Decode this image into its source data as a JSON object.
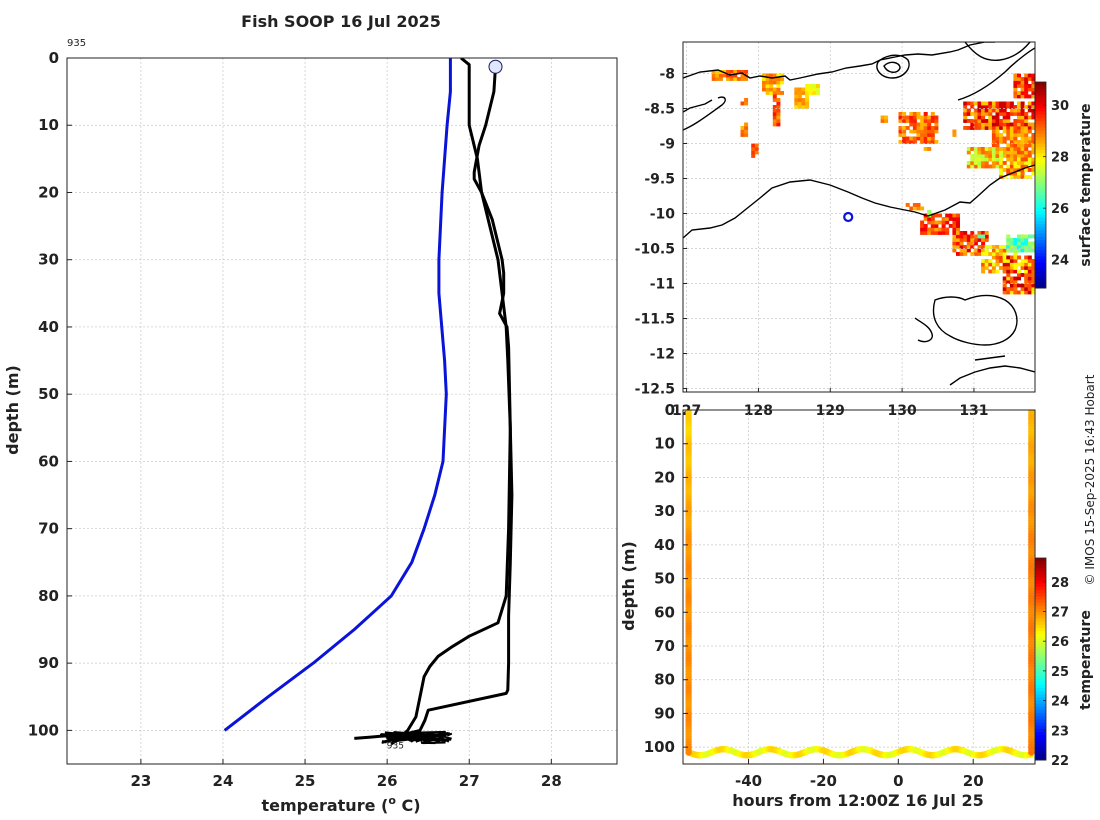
{
  "title": "Fish SOOP 16 Jul 2025",
  "copyright": "© IMOS 15-Sep-2025 16:43 Hobart",
  "colors": {
    "blue": "#0a14d8",
    "black": "#000000",
    "grid": "#c8c8c8"
  },
  "chart_data": [
    {
      "name": "profile",
      "type": "line",
      "xlabel": "temperature (",
      "xlabel_sup": "o",
      "xlabel_tail": " C)",
      "ylabel": "depth (m)",
      "xlim": [
        22.1,
        28.8
      ],
      "ylim": [
        0,
        105
      ],
      "xticks": [
        "23",
        "24",
        "25",
        "26",
        "27",
        "28"
      ],
      "yticks": [
        "0",
        "10",
        "20",
        "30",
        "40",
        "50",
        "60",
        "70",
        "80",
        "90",
        "100"
      ],
      "top_label": "935",
      "bottom_label": "935",
      "marker": {
        "x": 27.32,
        "y": 1.3
      },
      "series": [
        {
          "name": "climatology",
          "color": "#0a14d8",
          "x": [
            26.77,
            26.77,
            26.73,
            26.7,
            26.67,
            26.65,
            26.63,
            26.63,
            26.7,
            26.72,
            26.68,
            26.58,
            26.45,
            26.3,
            26.05,
            25.6,
            25.1,
            24.55,
            24.02
          ],
          "y": [
            0,
            5,
            10,
            15,
            20,
            25,
            30,
            35,
            45,
            50,
            60,
            65,
            70,
            75,
            80,
            85,
            90,
            95,
            100
          ]
        },
        {
          "name": "down-cast",
          "color": "#000000",
          "x": [
            26.9,
            27.0,
            27.0,
            27.0,
            27.1,
            27.15,
            27.25,
            27.35,
            27.4,
            27.45,
            27.47,
            27.5,
            27.48,
            27.45,
            27.35,
            27.0,
            26.8,
            26.62,
            26.52,
            26.45,
            26.4,
            26.35,
            26.25,
            26.12,
            26.05
          ],
          "y": [
            0,
            1,
            5,
            10,
            15,
            20,
            25,
            30,
            35,
            40,
            45,
            55,
            70,
            80,
            84,
            86,
            87.5,
            89,
            90.5,
            92,
            95,
            98,
            100,
            101.5,
            102
          ]
        },
        {
          "name": "up-cast",
          "color": "#000000",
          "x": [
            27.32,
            27.3,
            27.2,
            27.12,
            27.06,
            27.06,
            27.15,
            27.28,
            27.4,
            27.42,
            27.42,
            27.37,
            27.46,
            27.48,
            27.5,
            27.52,
            27.5,
            27.48,
            27.48,
            27.48,
            27.47,
            27.45,
            26.5,
            26.46,
            26.4,
            26.2,
            25.8,
            25.6
          ],
          "y": [
            1.3,
            5,
            10,
            13,
            17,
            18,
            20,
            24,
            30,
            32,
            35,
            38,
            40,
            43,
            55,
            65,
            75,
            83,
            85,
            90,
            94,
            94.5,
            97,
            98.5,
            100,
            100.6,
            101,
            101.2
          ]
        }
      ]
    },
    {
      "name": "map",
      "type": "heatmap",
      "xlim": [
        126.95,
        131.85
      ],
      "ylim": [
        -12.55,
        -7.55
      ],
      "xticks": [
        "127",
        "128",
        "129",
        "130",
        "131"
      ],
      "yticks": [
        "-8",
        "-8.5",
        "-9",
        "-9.5",
        "-10",
        "-10.5",
        "-11",
        "-11.5",
        "-12",
        "-12.5"
      ],
      "colorbar_label": "surface temperature",
      "colorbar_ticks": [
        "24",
        "26",
        "28",
        "30"
      ],
      "colorbar_range": [
        22.9,
        30.9
      ],
      "station": {
        "lon": 129.25,
        "lat": -10.05
      },
      "pixel_patches": [
        {
          "lon": [
            127.35,
            127.85
          ],
          "lat": [
            -8.1,
            -7.98
          ],
          "temps": [
            28.4,
            29.0,
            29.4
          ]
        },
        {
          "lon": [
            127.75,
            127.85
          ],
          "lat": [
            -8.45,
            -8.35
          ],
          "temps": [
            29.0,
            29.3
          ]
        },
        {
          "lon": [
            127.75,
            127.85
          ],
          "lat": [
            -8.9,
            -8.7
          ],
          "temps": [
            28.6,
            29.1
          ]
        },
        {
          "lon": [
            127.9,
            128.0
          ],
          "lat": [
            -9.2,
            -9.0
          ],
          "temps": [
            29.0,
            29.4
          ]
        },
        {
          "lon": [
            128.05,
            128.35
          ],
          "lat": [
            -8.3,
            -8.0
          ],
          "temps": [
            28.0,
            28.5,
            29.0
          ]
        },
        {
          "lon": [
            128.2,
            128.3
          ],
          "lat": [
            -8.75,
            -8.3
          ],
          "temps": [
            28.8,
            29.2,
            29.6
          ]
        },
        {
          "lon": [
            128.5,
            128.7
          ],
          "lat": [
            -8.5,
            -8.2
          ],
          "temps": [
            28.3,
            28.8
          ]
        },
        {
          "lon": [
            128.65,
            128.85
          ],
          "lat": [
            -8.3,
            -8.15
          ],
          "temps": [
            27.8,
            28.2
          ]
        },
        {
          "lon": [
            129.7,
            129.8
          ],
          "lat": [
            -8.7,
            -8.6
          ],
          "temps": [
            28.5,
            28.9
          ]
        },
        {
          "lon": [
            129.95,
            130.5
          ],
          "lat": [
            -9.0,
            -8.55
          ],
          "temps": [
            28.6,
            29.1,
            29.6
          ]
        },
        {
          "lon": [
            130.3,
            130.4
          ],
          "lat": [
            -9.1,
            -9.05
          ],
          "temps": [
            28.5,
            28.9
          ]
        },
        {
          "lon": [
            130.7,
            130.75
          ],
          "lat": [
            -8.9,
            -8.8
          ],
          "temps": [
            28.7,
            29.0
          ]
        },
        {
          "lon": [
            130.85,
            131.85
          ],
          "lat": [
            -8.8,
            -8.4
          ],
          "temps": [
            28.5,
            29.4,
            30.2
          ]
        },
        {
          "lon": [
            131.25,
            131.85
          ],
          "lat": [
            -9.2,
            -8.8
          ],
          "temps": [
            28.5,
            29.2
          ]
        },
        {
          "lon": [
            130.9,
            131.4
          ],
          "lat": [
            -9.35,
            -9.05
          ],
          "temps": [
            29.0,
            28.6,
            27.5
          ]
        },
        {
          "lon": [
            131.35,
            131.85
          ],
          "lat": [
            -9.5,
            -9.2
          ],
          "temps": [
            28.6,
            29.2,
            27.9
          ]
        },
        {
          "lon": [
            131.55,
            131.85
          ],
          "lat": [
            -8.35,
            -8.0
          ],
          "temps": [
            28.7,
            29.2,
            30.0
          ]
        },
        {
          "lon": [
            130.05,
            130.3
          ],
          "lat": [
            -9.95,
            -9.85
          ],
          "temps": [
            28.5,
            29.0
          ]
        },
        {
          "lon": [
            130.25,
            130.8
          ],
          "lat": [
            -10.3,
            -10.0
          ],
          "temps": [
            28.8,
            29.3,
            30.0
          ]
        },
        {
          "lon": [
            130.7,
            131.2
          ],
          "lat": [
            -10.6,
            -10.25
          ],
          "temps": [
            28.6,
            29.2,
            30.0
          ]
        },
        {
          "lon": [
            131.1,
            131.6
          ],
          "lat": [
            -10.85,
            -10.45
          ],
          "temps": [
            27.8,
            28.6,
            29.3
          ]
        },
        {
          "lon": [
            131.4,
            131.85
          ],
          "lat": [
            -11.15,
            -10.6
          ],
          "temps": [
            28.0,
            29.2,
            30.3
          ]
        },
        {
          "lon": [
            131.45,
            131.85
          ],
          "lat": [
            -10.55,
            -10.3
          ],
          "temps": [
            26.0,
            26.8,
            27.2
          ]
        },
        {
          "lon": [
            131.0,
            131.15
          ],
          "lat": [
            -10.35,
            -10.3
          ],
          "temps": [
            27.0,
            26.6
          ]
        },
        {
          "lon": [
            130.35,
            130.45
          ],
          "lat": [
            -10.05,
            -9.95
          ],
          "temps": [
            27.2,
            27.5
          ]
        }
      ]
    },
    {
      "name": "section",
      "type": "scatter",
      "xlabel": "hours from 12:00Z 16 Jul 25",
      "ylabel": "depth (m)",
      "xlim": [
        -57.5,
        36.5
      ],
      "ylim": [
        0,
        105
      ],
      "xticks": [
        "-40",
        "-20",
        "0",
        "20"
      ],
      "yticks": [
        "0",
        "10",
        "20",
        "30",
        "40",
        "50",
        "60",
        "70",
        "80",
        "90",
        "100"
      ],
      "colorbar_label": "temperature",
      "colorbar_ticks": [
        "22",
        "23",
        "24",
        "25",
        "26",
        "27",
        "28"
      ],
      "colorbar_range": [
        22.0,
        28.8
      ],
      "profiles": [
        {
          "hour": -56.0,
          "depth_top": 0,
          "depth_bottom": 102,
          "temp_top": 26.5,
          "temp_bottom": 27.0
        },
        {
          "hour": 35.5,
          "depth_top": 0,
          "depth_bottom": 102,
          "temp_top": 26.7,
          "temp_bottom": 27.1
        }
      ],
      "bottom_track": {
        "hour_start": -56.0,
        "hour_end": 35.5,
        "depth_mean": 101.5,
        "amplitude": 0.9,
        "period_hours": 12.4,
        "temp": 26.3
      }
    }
  ]
}
